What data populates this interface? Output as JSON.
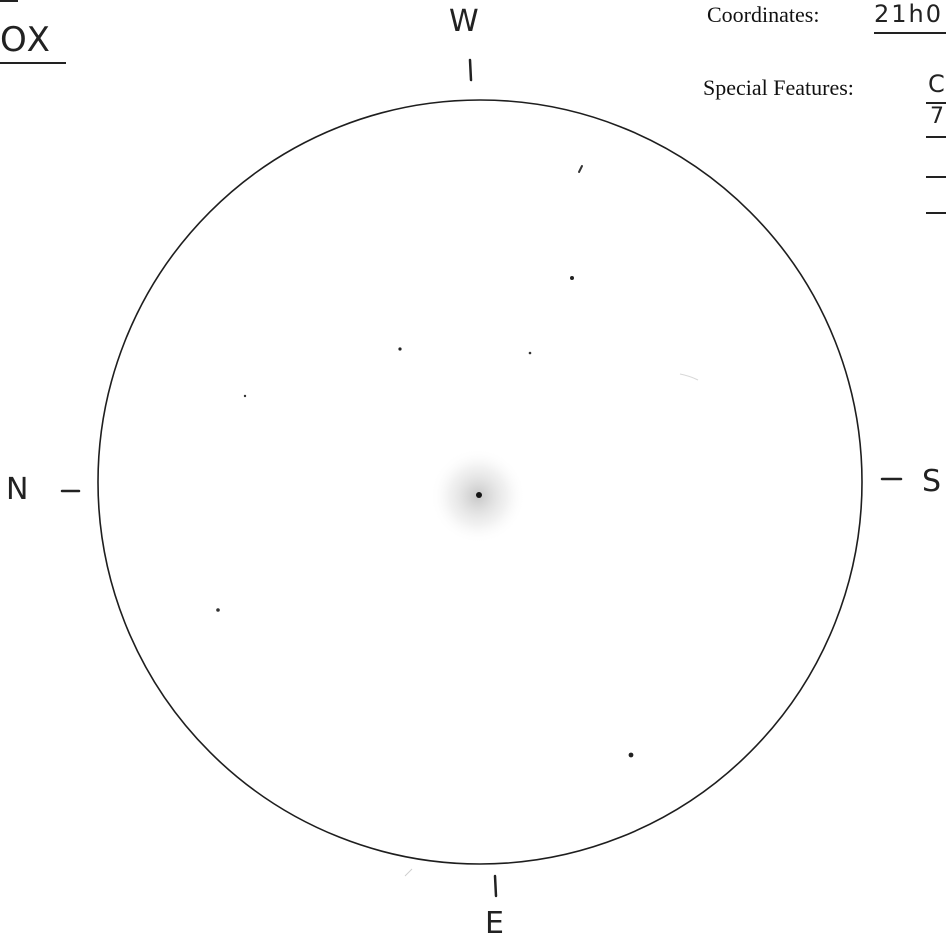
{
  "header": {
    "magnification_fragment": "OX",
    "coordinates_label": "Coordinates:",
    "coordinates_value_fragment": "21h0",
    "special_features_label": "Special Features:",
    "special_features_line1_fragment": "C",
    "special_features_line2_fragment": "7"
  },
  "compass": {
    "top": "W",
    "left": "N",
    "right": "S",
    "bottom": "E"
  },
  "field_of_view": {
    "central_object_glow": true,
    "stars": [
      {
        "name": "star-1",
        "magnitude_hint": "faint"
      },
      {
        "name": "star-2",
        "magnitude_hint": "faint"
      },
      {
        "name": "star-3",
        "magnitude_hint": "faint"
      },
      {
        "name": "star-4",
        "magnitude_hint": "faint"
      },
      {
        "name": "star-5",
        "magnitude_hint": "faint"
      },
      {
        "name": "star-6",
        "magnitude_hint": "faint"
      },
      {
        "name": "star-7",
        "magnitude_hint": "medium"
      }
    ]
  },
  "colors": {
    "ink": "#222222",
    "paper": "#ffffff",
    "glow": "#bdbdbd"
  }
}
